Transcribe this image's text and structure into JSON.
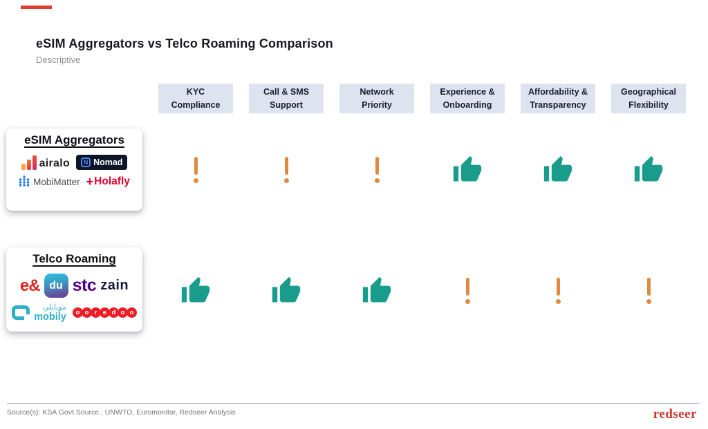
{
  "header": {
    "title": "eSIM Aggregators vs Telco Roaming Comparison",
    "subtitle": "Descriptive"
  },
  "columns": [
    {
      "line1": "KYC",
      "line2": "Compliance"
    },
    {
      "line1": "Call & SMS",
      "line2": "Support"
    },
    {
      "line1": "Network",
      "line2": "Priority"
    },
    {
      "line1": "Experience &",
      "line2": "Onboarding"
    },
    {
      "line1": "Affordability &",
      "line2": "Transparency"
    },
    {
      "line1": "Geographical",
      "line2": "Flexibility"
    }
  ],
  "groups": {
    "esim": {
      "label": "eSIM Aggregators",
      "logos": {
        "airalo": "airalo",
        "nomad_icon_letter": "N",
        "nomad": "Nomad",
        "mobimatter": "MobiMatter",
        "holafly_prefix": "+",
        "holafly": "Holafly"
      },
      "ratings": [
        "warning",
        "warning",
        "warning",
        "thumbs-up",
        "thumbs-up",
        "thumbs-up"
      ]
    },
    "telco": {
      "label": "Telco Roaming",
      "logos": {
        "eand": "e&",
        "du": "du",
        "stc": "stc",
        "zain": "zain",
        "mobily_arabic": "موبايلي",
        "mobily": "mobily",
        "ooredoo": "ooredoo"
      },
      "ratings": [
        "thumbs-up",
        "thumbs-up",
        "thumbs-up",
        "warning",
        "warning",
        "warning"
      ]
    }
  },
  "footer": {
    "source": "Source(s): KSA Govt Source., UNWTO, Euromonitor, Redseer Analysis",
    "brand": "redseer"
  },
  "colors": {
    "thumbs_up": "#199C8B",
    "warning": "#E18A3F",
    "header_box": "#DEE3F0",
    "brand_red": "#CE372E",
    "accent_bar": "#E23B30"
  }
}
